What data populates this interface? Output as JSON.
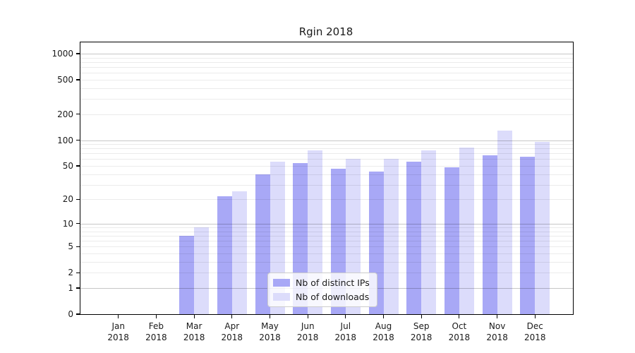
{
  "title": "Rgin 2018",
  "chart_data": {
    "type": "bar",
    "title": "Rgin 2018",
    "categories": [
      "Jan 2018",
      "Feb 2018",
      "Mar 2018",
      "Apr 2018",
      "May 2018",
      "Jun 2018",
      "Jul 2018",
      "Aug 2018",
      "Sep 2018",
      "Oct 2018",
      "Nov 2018",
      "Dec 2018"
    ],
    "series": [
      {
        "name": "Nb of distinct IPs",
        "color": "#a8a8f6",
        "values": [
          0,
          0,
          7,
          22,
          40,
          54,
          46,
          43,
          56,
          48,
          67,
          64
        ]
      },
      {
        "name": "Nb of downloads",
        "color": "#dcdcfb",
        "values": [
          0,
          0,
          9,
          25,
          56,
          76,
          61,
          61,
          76,
          82,
          130,
          96
        ]
      }
    ],
    "xlabel": "",
    "ylabel": "",
    "yscale": "log10(1+y)",
    "yticks": [
      0,
      1,
      2,
      5,
      10,
      20,
      50,
      100,
      200,
      500,
      1000
    ],
    "ylim": [
      0,
      1350
    ],
    "grid": true,
    "legend_position": "lower center"
  },
  "colors": {
    "bar_ips": "#a8a8f6",
    "bar_downloads": "#dcdcfb",
    "grid_minor": "rgba(0,0,0,0.08)",
    "grid_major": "rgba(0,0,0,0.22)",
    "axis": "#000000",
    "text": "#1a1a1a"
  }
}
